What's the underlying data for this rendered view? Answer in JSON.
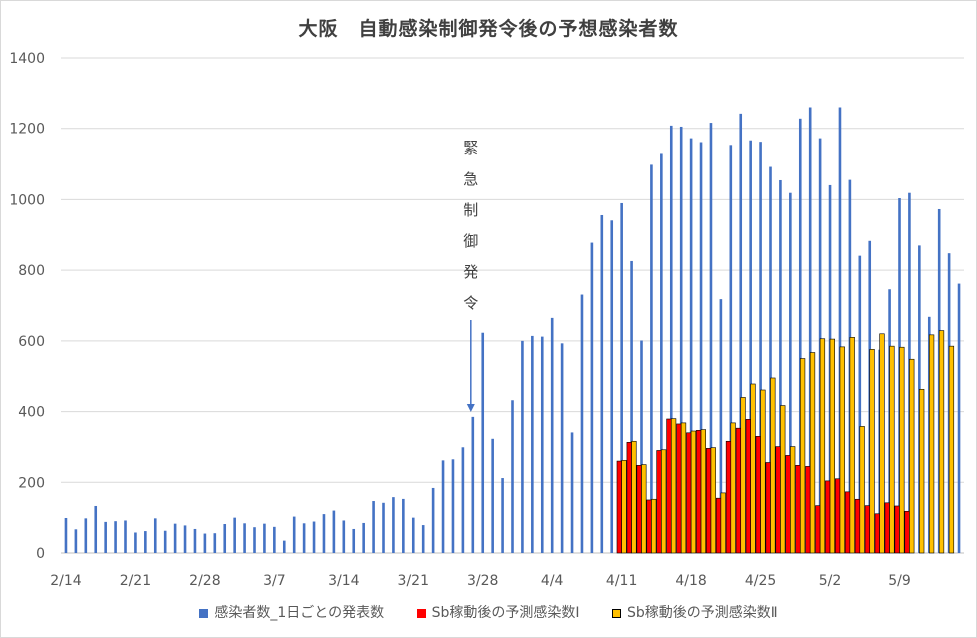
{
  "chart_data": {
    "type": "bar",
    "title": "大阪　自動感染制御発令後の予想感染者数",
    "xlabel": "",
    "ylabel": "",
    "ylim": [
      0,
      1400
    ],
    "yticks": [
      0,
      200,
      400,
      600,
      800,
      1000,
      1200,
      1400
    ],
    "grid": "horizontal",
    "legend_position": "bottom",
    "x_start": "2/14",
    "x_end": "5/13",
    "xtick_labels": [
      "2/14",
      "2/21",
      "2/28",
      "3/7",
      "3/14",
      "3/21",
      "3/28",
      "4/4",
      "4/11",
      "4/18",
      "4/25",
      "5/2",
      "5/9"
    ],
    "annotation": {
      "text": "緊急制御発令",
      "date": "3/27",
      "style": "vertical-text-with-down-arrow"
    },
    "series": [
      {
        "name": "感染者数_1日ごとの発表数",
        "color": "#4472c4",
        "values": [
          99,
          67,
          98,
          133,
          88,
          90,
          92,
          58,
          62,
          98,
          63,
          83,
          78,
          68,
          55,
          56,
          82,
          100,
          84,
          73,
          83,
          74,
          35,
          103,
          84,
          89,
          110,
          120,
          92,
          68,
          85,
          147,
          142,
          158,
          153,
          100,
          79,
          184,
          262,
          265,
          299,
          385,
          623,
          323,
          212,
          432,
          600,
          614,
          612,
          665,
          593,
          341,
          731,
          878,
          956,
          941,
          990,
          826,
          601,
          1099,
          1130,
          1208,
          1205,
          1172,
          1161,
          1216,
          718,
          1153,
          1242,
          1166,
          1162,
          1093,
          1055,
          1019,
          1228,
          1260,
          1172,
          1041,
          1260,
          1056,
          841,
          883,
          575,
          746,
          1004,
          1019,
          870,
          668,
          973,
          848,
          762
        ],
        "style": "thin-bar"
      },
      {
        "name": "Sb稼動後の予測感染数Ⅰ",
        "color": "#ff0000",
        "values": [
          null,
          null,
          null,
          null,
          null,
          null,
          null,
          null,
          null,
          null,
          null,
          null,
          null,
          null,
          null,
          null,
          null,
          null,
          null,
          null,
          null,
          null,
          null,
          null,
          null,
          null,
          null,
          null,
          null,
          null,
          null,
          null,
          null,
          null,
          null,
          null,
          null,
          null,
          null,
          null,
          null,
          null,
          null,
          null,
          null,
          null,
          null,
          null,
          null,
          null,
          null,
          null,
          null,
          null,
          null,
          null,
          260,
          313,
          248,
          150,
          290,
          379,
          365,
          340,
          347,
          296,
          155,
          316,
          353,
          378,
          330,
          256,
          301,
          276,
          248,
          245,
          134,
          204,
          210,
          173,
          152,
          134,
          111,
          142,
          133,
          118,
          null,
          null,
          null,
          null,
          null
        ],
        "style": "wide-bar"
      },
      {
        "name": "Sb稼動後の予測感染数Ⅱ",
        "color": "#ffc000",
        "edge": "#000000",
        "values": [
          null,
          null,
          null,
          null,
          null,
          null,
          null,
          null,
          null,
          null,
          null,
          null,
          null,
          null,
          null,
          null,
          null,
          null,
          null,
          null,
          null,
          null,
          null,
          null,
          null,
          null,
          null,
          null,
          null,
          null,
          null,
          null,
          null,
          null,
          null,
          null,
          null,
          null,
          null,
          null,
          null,
          null,
          null,
          null,
          null,
          null,
          null,
          null,
          null,
          null,
          null,
          null,
          null,
          null,
          null,
          null,
          262,
          316,
          250,
          152,
          292,
          380,
          368,
          345,
          349,
          298,
          170,
          368,
          440,
          478,
          461,
          495,
          417,
          301,
          550,
          567,
          606,
          605,
          583,
          610,
          358,
          576,
          620,
          585,
          582,
          548,
          463,
          617,
          629,
          585,
          null,
          null,
          null,
          null,
          null
        ],
        "style": "wide-bar"
      }
    ]
  }
}
